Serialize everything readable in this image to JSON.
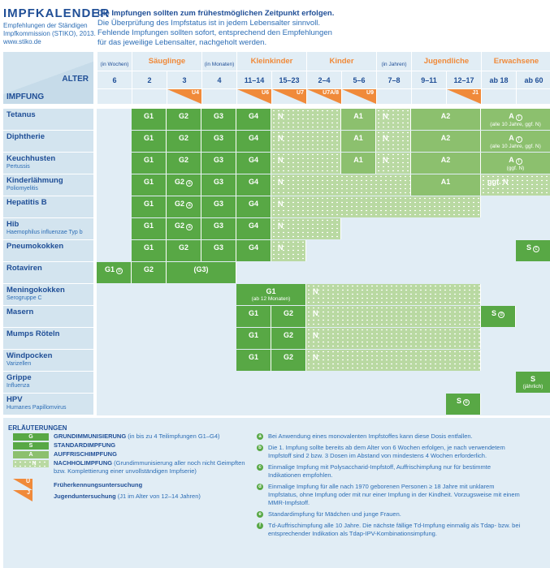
{
  "header": {
    "title": "IMPFKALENDER",
    "subtitle": [
      "Empfehlungen der Ständigen",
      "Impfkommission (STIKO), 2013.",
      "www.stiko.de"
    ],
    "intro_bold": "Die Impfungen sollten zum frühestmöglichen Zeitpunkt erfolgen.",
    "intro": [
      "Die Überprüfung des Impfstatus ist in jedem Lebensalter sinnvoll.",
      "Fehlende Impfungen sollten sofort, entsprechend den Empfehlungen",
      "für das jeweilige Lebensalter, nachgeholt werden."
    ]
  },
  "table": {
    "alter_label": "ALTER",
    "impfung_label": "IMPFUNG",
    "groups": [
      {
        "col": 0,
        "span": 1,
        "label": "(in Wochen)",
        "unit": true
      },
      {
        "col": 1,
        "span": 2,
        "label": "Säuglinge"
      },
      {
        "col": 3,
        "span": 1,
        "label": "(in Monaten)",
        "unit": true
      },
      {
        "col": 4,
        "span": 2,
        "label": "Kleinkinder"
      },
      {
        "col": 6,
        "span": 2,
        "label": "Kinder"
      },
      {
        "col": 8,
        "span": 1,
        "label": "(in Jahren)",
        "unit": true
      },
      {
        "col": 9,
        "span": 2,
        "label": "Jugendliche"
      },
      {
        "col": 11,
        "span": 2,
        "label": "Erwachsene"
      }
    ],
    "ages": [
      "6",
      "2",
      "3",
      "4",
      "11–14",
      "15–23",
      "2–4",
      "5–6",
      "7–8",
      "9–11",
      "12–17",
      "ab 18",
      "ab 60"
    ],
    "exams": [
      {
        "col": 2,
        "label": "U4"
      },
      {
        "col": 4,
        "label": "U6"
      },
      {
        "col": 5,
        "label": "U7"
      },
      {
        "col": 6,
        "label": "U7A/8"
      },
      {
        "col": 7,
        "label": "U9"
      },
      {
        "col": 10,
        "label": "J1"
      }
    ],
    "rows": [
      {
        "name": "Tetanus",
        "cells": [
          {
            "c": 1,
            "s": 1,
            "t": "G",
            "l": "G1"
          },
          {
            "c": 2,
            "s": 1,
            "t": "G",
            "l": "G2"
          },
          {
            "c": 3,
            "s": 1,
            "t": "G",
            "l": "G3"
          },
          {
            "c": 4,
            "s": 1,
            "t": "G",
            "l": "G4"
          },
          {
            "c": 5,
            "s": 2,
            "t": "N",
            "l": "N"
          },
          {
            "c": 7,
            "s": 1,
            "t": "A",
            "l": "A1"
          },
          {
            "c": 8,
            "s": 1,
            "t": "N",
            "l": "N"
          },
          {
            "c": 9,
            "s": 2,
            "t": "A",
            "l": "A2"
          },
          {
            "c": 11,
            "s": 2,
            "t": "A",
            "l": "A",
            "note": "f",
            "sub": "(alle 10 Jahre, ggf. N)"
          }
        ]
      },
      {
        "name": "Diphtherie",
        "cells": [
          {
            "c": 1,
            "s": 1,
            "t": "G",
            "l": "G1"
          },
          {
            "c": 2,
            "s": 1,
            "t": "G",
            "l": "G2"
          },
          {
            "c": 3,
            "s": 1,
            "t": "G",
            "l": "G3"
          },
          {
            "c": 4,
            "s": 1,
            "t": "G",
            "l": "G4"
          },
          {
            "c": 5,
            "s": 2,
            "t": "N",
            "l": "N"
          },
          {
            "c": 7,
            "s": 1,
            "t": "A",
            "l": "A1"
          },
          {
            "c": 8,
            "s": 1,
            "t": "N",
            "l": "N"
          },
          {
            "c": 9,
            "s": 2,
            "t": "A",
            "l": "A2"
          },
          {
            "c": 11,
            "s": 2,
            "t": "A",
            "l": "A",
            "note": "f",
            "sub": "(alle 10 Jahre, ggf. N)"
          }
        ]
      },
      {
        "name": "Keuchhusten",
        "sub": "Pertussis",
        "cells": [
          {
            "c": 1,
            "s": 1,
            "t": "G",
            "l": "G1"
          },
          {
            "c": 2,
            "s": 1,
            "t": "G",
            "l": "G2"
          },
          {
            "c": 3,
            "s": 1,
            "t": "G",
            "l": "G3"
          },
          {
            "c": 4,
            "s": 1,
            "t": "G",
            "l": "G4"
          },
          {
            "c": 5,
            "s": 2,
            "t": "N",
            "l": "N"
          },
          {
            "c": 7,
            "s": 1,
            "t": "A",
            "l": "A1"
          },
          {
            "c": 8,
            "s": 1,
            "t": "N",
            "l": "N"
          },
          {
            "c": 9,
            "s": 2,
            "t": "A",
            "l": "A2"
          },
          {
            "c": 11,
            "s": 2,
            "t": "A",
            "l": "A",
            "note": "f",
            "sub": "(ggf. N)"
          }
        ]
      },
      {
        "name": "Kinderlähmung",
        "sub": "Poliomyelitis",
        "cells": [
          {
            "c": 1,
            "s": 1,
            "t": "G",
            "l": "G1"
          },
          {
            "c": 2,
            "s": 1,
            "t": "G",
            "l": "G2",
            "note": "a"
          },
          {
            "c": 3,
            "s": 1,
            "t": "G",
            "l": "G3"
          },
          {
            "c": 4,
            "s": 1,
            "t": "G",
            "l": "G4"
          },
          {
            "c": 5,
            "s": 4,
            "t": "N",
            "l": "N"
          },
          {
            "c": 9,
            "s": 2,
            "t": "A",
            "l": "A1"
          },
          {
            "c": 11,
            "s": 2,
            "t": "N",
            "l": "ggf. N"
          }
        ]
      },
      {
        "name": "Hepatitis B",
        "cells": [
          {
            "c": 1,
            "s": 1,
            "t": "G",
            "l": "G1"
          },
          {
            "c": 2,
            "s": 1,
            "t": "G",
            "l": "G2",
            "note": "a"
          },
          {
            "c": 3,
            "s": 1,
            "t": "G",
            "l": "G3"
          },
          {
            "c": 4,
            "s": 1,
            "t": "G",
            "l": "G4"
          },
          {
            "c": 5,
            "s": 6,
            "t": "N",
            "l": "N"
          }
        ]
      },
      {
        "name": "Hib",
        "sub": "Haemophilus influenzae Typ b",
        "cells": [
          {
            "c": 1,
            "s": 1,
            "t": "G",
            "l": "G1"
          },
          {
            "c": 2,
            "s": 1,
            "t": "G",
            "l": "G2",
            "note": "a"
          },
          {
            "c": 3,
            "s": 1,
            "t": "G",
            "l": "G3"
          },
          {
            "c": 4,
            "s": 1,
            "t": "G",
            "l": "G4"
          },
          {
            "c": 5,
            "s": 2,
            "t": "N",
            "l": "N"
          }
        ]
      },
      {
        "name": "Pneumokokken",
        "cells": [
          {
            "c": 1,
            "s": 1,
            "t": "G",
            "l": "G1"
          },
          {
            "c": 2,
            "s": 1,
            "t": "G",
            "l": "G2"
          },
          {
            "c": 3,
            "s": 1,
            "t": "G",
            "l": "G3"
          },
          {
            "c": 4,
            "s": 1,
            "t": "G",
            "l": "G4"
          },
          {
            "c": 5,
            "s": 1,
            "t": "N",
            "l": "N"
          },
          {
            "c": 12,
            "s": 1,
            "t": "S",
            "l": "S",
            "note": "c"
          }
        ]
      },
      {
        "name": "Rotaviren",
        "cells": [
          {
            "c": 0,
            "s": 1,
            "t": "G",
            "l": "G1",
            "note": "b"
          },
          {
            "c": 1,
            "s": 1,
            "t": "G",
            "l": "G2"
          },
          {
            "c": 2,
            "s": 2,
            "t": "G",
            "l": "(G3)"
          }
        ]
      },
      {
        "name": "Meningokokken",
        "sub": "Serogruppe C",
        "cells": [
          {
            "c": 4,
            "s": 2,
            "t": "G",
            "l": "G1",
            "sub": "(ab 12 Monaten)"
          },
          {
            "c": 6,
            "s": 5,
            "t": "N",
            "l": "N"
          }
        ]
      },
      {
        "name": "Masern",
        "cells": [
          {
            "c": 4,
            "s": 1,
            "t": "G",
            "l": "G1"
          },
          {
            "c": 5,
            "s": 1,
            "t": "G",
            "l": "G2"
          },
          {
            "c": 6,
            "s": 5,
            "t": "N",
            "l": "N"
          },
          {
            "c": 11,
            "s": 1,
            "t": "S",
            "l": "S",
            "note": "d"
          }
        ]
      },
      {
        "name": "Mumps  Röteln",
        "cells": [
          {
            "c": 4,
            "s": 1,
            "t": "G",
            "l": "G1"
          },
          {
            "c": 5,
            "s": 1,
            "t": "G",
            "l": "G2"
          },
          {
            "c": 6,
            "s": 5,
            "t": "N",
            "l": "N"
          }
        ]
      },
      {
        "name": "Windpocken",
        "sub": "Varizellen",
        "cells": [
          {
            "c": 4,
            "s": 1,
            "t": "G",
            "l": "G1"
          },
          {
            "c": 5,
            "s": 1,
            "t": "G",
            "l": "G2"
          },
          {
            "c": 6,
            "s": 5,
            "t": "N",
            "l": "N"
          }
        ]
      },
      {
        "name": "Grippe",
        "sub": "Influenza",
        "cells": [
          {
            "c": 12,
            "s": 1,
            "t": "S",
            "l": "S",
            "sub": "(jährlich)"
          }
        ]
      },
      {
        "name": "HPV",
        "sub": "Humanes Papillomvirus",
        "cells": [
          {
            "c": 10,
            "s": 1,
            "t": "S",
            "l": "S",
            "note": "e"
          }
        ]
      }
    ]
  },
  "legend": {
    "title": "ERLÄUTERUNGEN",
    "keys": [
      {
        "t": "G",
        "k": "G",
        "bold": "GRUNDIMMUNISIERUNG",
        "rest": " (in bis zu 4 Teilimpfungen G1–G4)"
      },
      {
        "t": "S",
        "k": "S",
        "bold": "STANDARDIMPFUNG",
        "rest": ""
      },
      {
        "t": "A",
        "k": "A",
        "bold": "AUFFRISCHIMPFUNG",
        "rest": ""
      },
      {
        "t": "N",
        "k": "N",
        "bold": "NACHHOLIMPFUNG",
        "rest": " (Grundimmunisierung aller noch nicht Geimpften bzw. Komplettierung einer unvollständigen Impfserie)"
      }
    ],
    "exams": [
      {
        "k": "U",
        "bold": "Früherkennungsuntersuchung",
        "rest": ""
      },
      {
        "k": "J",
        "bold": "Jugenduntersuchung",
        "rest": " (J1 im Alter von 12–14 Jahren)"
      }
    ],
    "footnotes": [
      {
        "k": "a",
        "text": "Bei Anwendung eines monovalenten Impfstoffes kann diese Dosis entfallen."
      },
      {
        "k": "b",
        "text": "Die 1. Impfung sollte bereits ab dem Alter von 6 Wochen erfolgen, je nach verwendetem Impfstoff sind 2 bzw. 3 Dosen im Abstand von mindestens 4 Wochen erforderlich."
      },
      {
        "k": "c",
        "text": "Einmalige Impfung mit Polysaccharid-Impfstoff, Auffrischimpfung nur für bestimmte Indikationen empfohlen."
      },
      {
        "k": "d",
        "text": "Einmalige Impfung für alle nach 1970 geborenen Personen ≥ 18 Jahre mit unklarem Impfstatus, ohne Impfung oder mit nur einer Impfung in der Kindheit. Vorzugsweise mit einem MMR-Impfstoff."
      },
      {
        "k": "e",
        "text": "Standardimpfung für Mädchen und junge Frauen."
      },
      {
        "k": "f",
        "text": "Td-Auffrischimpfung alle 10 Jahre. Die nächste fällige Td-Impfung einmalig als Tdap- bzw. bei entsprechender Indikation als Tdap-IPV-Kombinationsimpfung."
      }
    ]
  },
  "colors": {
    "primary": "#1f4e96",
    "accent": "#f08a3a",
    "green": "#58a845",
    "light_green": "#8cc06e",
    "pale_green": "#b9d9a2"
  }
}
